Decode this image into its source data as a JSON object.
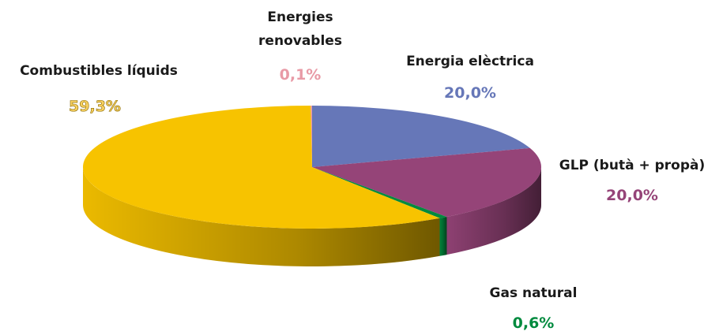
{
  "chart_data": {
    "type": "pie3d",
    "categories": [
      "Energies renovables",
      "Energia elèctrica",
      "GLP (butà + propà)",
      "Gas natural",
      "Combustibles líquids"
    ],
    "values": [
      0.1,
      20.0,
      20.0,
      0.6,
      59.3
    ],
    "value_labels": [
      "0,1%",
      "20,0%",
      "20,0%",
      "0,6%",
      "59,3%"
    ],
    "colors": [
      "#e89aa6",
      "#6677b8",
      "#954478",
      "#008a3e",
      "#f7c300"
    ]
  }
}
